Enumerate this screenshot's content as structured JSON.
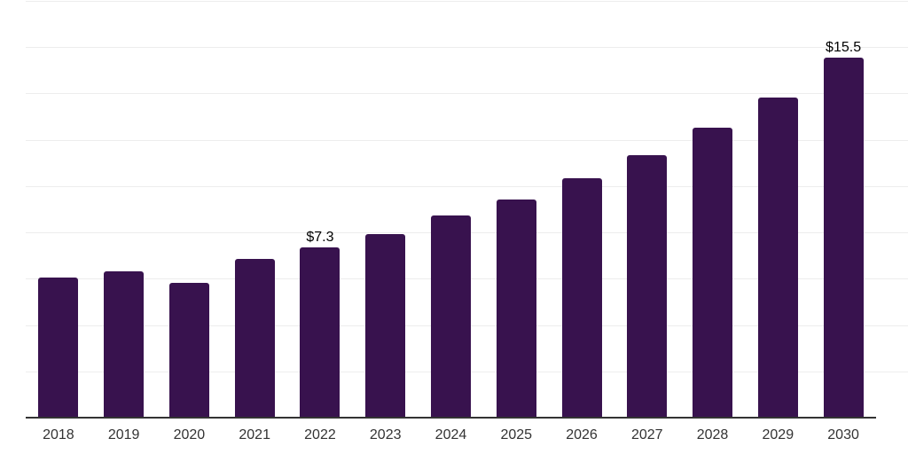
{
  "chart_data": {
    "type": "bar",
    "title": "",
    "xlabel": "",
    "ylabel": "",
    "categories": [
      "2018",
      "2019",
      "2020",
      "2021",
      "2022",
      "2023",
      "2024",
      "2025",
      "2026",
      "2027",
      "2028",
      "2029",
      "2030"
    ],
    "values": [
      6.0,
      6.3,
      5.8,
      6.8,
      7.3,
      7.9,
      8.7,
      9.4,
      10.3,
      11.3,
      12.5,
      13.8,
      15.5
    ],
    "data_labels": [
      "",
      "",
      "",
      "",
      "$7.3",
      "",
      "",
      "",
      "",
      "",
      "",
      "",
      "$15.5"
    ],
    "ylim": [
      0,
      18
    ],
    "gridline_step": 2,
    "grid": true,
    "legend": "none",
    "colors": {
      "bar": "#38124E",
      "gridline": "#EDEDED",
      "axis": "#333333",
      "data_label": "#000000",
      "tick_label": "#333333"
    },
    "background": "#FFFFFF"
  }
}
